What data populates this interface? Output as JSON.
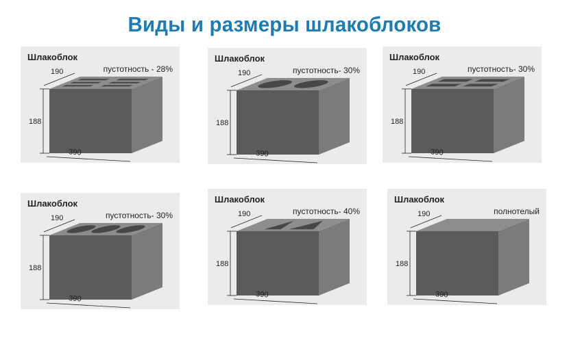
{
  "title": "Виды и размеры шлакоблоков",
  "colors": {
    "accent": "#1b7db3",
    "panel_bg": "#ebebeb",
    "block_front": "#5b5b5b",
    "block_top": "#8d8d8d",
    "block_side": "#7b7b7b",
    "cavity": "#474747"
  },
  "panels": [
    {
      "name": "Шлакоблок",
      "voidness": "пустотность - 28%",
      "width": "190",
      "height": "188",
      "length": "390",
      "cavity": "slots"
    },
    {
      "name": "Шлакоблок",
      "voidness": "пустотность- 30%",
      "width": "190",
      "height": "188",
      "length": "390",
      "cavity": "two-round"
    },
    {
      "name": "Шлакоблок",
      "voidness": "пустотность- 30%",
      "width": "190",
      "height": "188",
      "length": "390",
      "cavity": "four-rect"
    },
    {
      "name": "Шлакоблок",
      "voidness": "пустотность- 30%",
      "width": "190",
      "height": "188",
      "length": "390",
      "cavity": "three-round"
    },
    {
      "name": "Шлакоблок",
      "voidness": "пустотность- 40%",
      "width": "190",
      "height": "188",
      "length": "390",
      "cavity": "two-triangle"
    },
    {
      "name": "Шлакоблок",
      "voidness": "полнотелый",
      "width": "190",
      "height": "188",
      "length": "390",
      "cavity": "none"
    }
  ]
}
